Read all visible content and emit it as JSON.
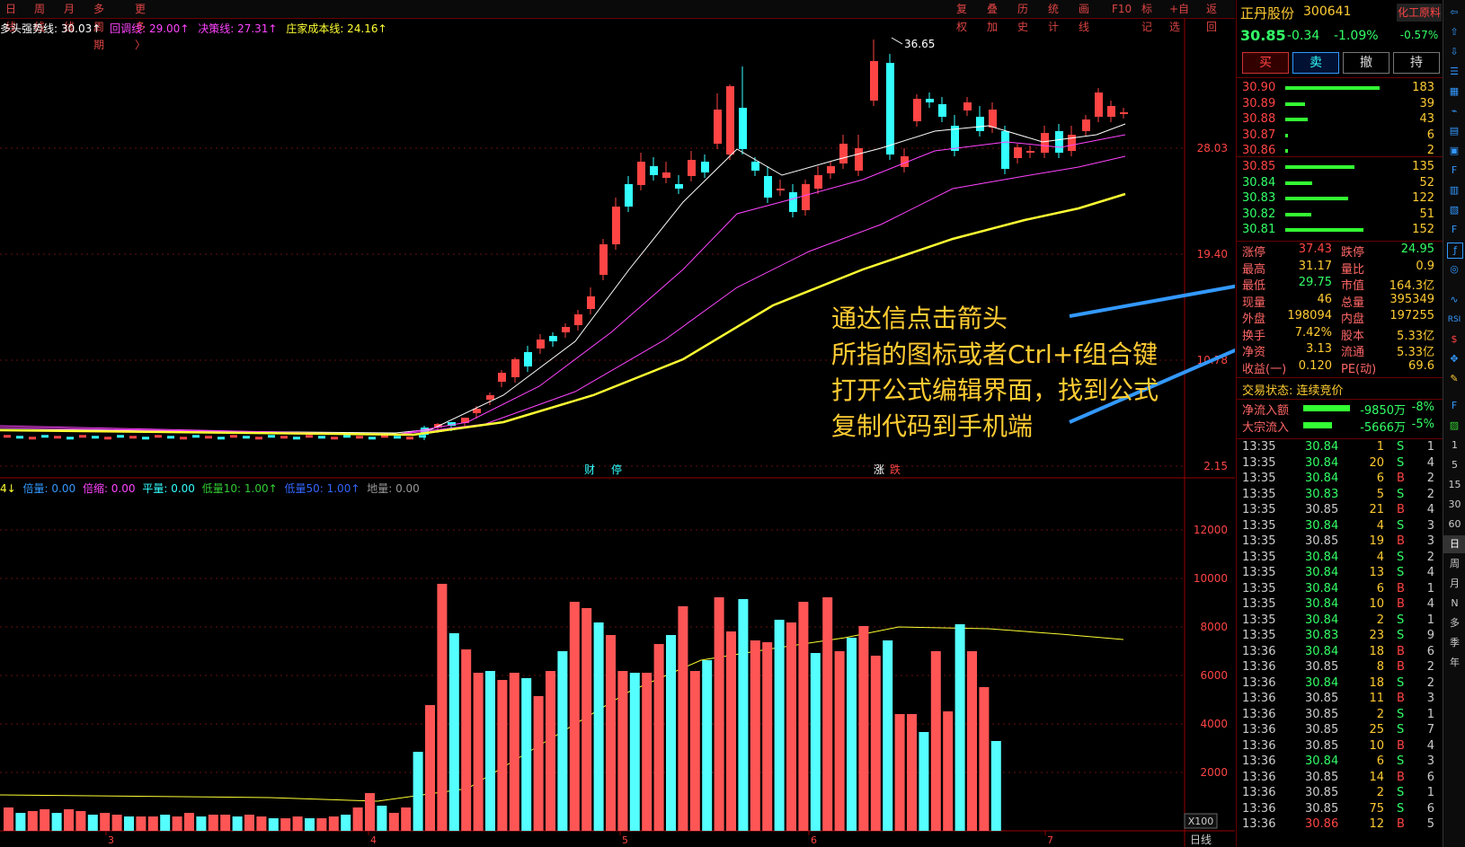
{
  "menu_left": [
    "日线",
    "周线",
    "月线",
    "多周期",
    "更多 〉"
  ],
  "menu_right": [
    "复权",
    "叠加",
    "历史",
    "统计",
    "画线",
    "F10",
    "标记",
    "+自选",
    "返回"
  ],
  "indicator_top": [
    {
      "label": "多头强势线: 30.03↑",
      "color": "#ffffff"
    },
    {
      "label": "回调线: 29.00↑",
      "color": "#ff44ff"
    },
    {
      "label": "决策线: 27.31↑",
      "color": "#ff44ff"
    },
    {
      "label": "庄家成本线: 24.16↑",
      "color": "#ffff33"
    }
  ],
  "indicator_vol": [
    {
      "label": "4↓",
      "color": "#ffff33"
    },
    {
      "label": "倍量: 0.00",
      "color": "#3399ff"
    },
    {
      "label": "倍缩: 0.00",
      "color": "#ff44ff"
    },
    {
      "label": "平量: 0.00",
      "color": "#33ffff"
    },
    {
      "label": "低量10: 1.00↑",
      "color": "#33cc33"
    },
    {
      "label": "低量50: 1.00↑",
      "color": "#3366ff"
    },
    {
      "label": "地量: 0.00",
      "color": "#999999"
    }
  ],
  "price_axis": [
    "28.03",
    "19.40",
    "10.78",
    "2.15"
  ],
  "vol_axis": [
    "12000",
    "10000",
    "8000",
    "6000",
    "4000",
    "2000"
  ],
  "vol_unit": "X100",
  "peak_label": "36.65",
  "date_axis": [
    "3",
    "4",
    "5",
    "6",
    "7"
  ],
  "date_axis_right": "日线",
  "event_labels": [
    "财",
    "停",
    "涨",
    "跌"
  ],
  "annotation": [
    "通达信点击箭头",
    "所指的图标或者Ctrl+f组合键",
    "打开公式编辑界面，找到公式",
    "复制代码到手机端"
  ],
  "stock": {
    "name": "正丹股份",
    "code": "300641",
    "industry": "化工原料",
    "price": "30.85",
    "change": "-0.34",
    "pct": "-1.09%",
    "industry_pct": "-0.57%"
  },
  "trade_buttons": [
    "买",
    "卖",
    "撤",
    "持"
  ],
  "asks": [
    [
      "30.90",
      "183"
    ],
    [
      "30.89",
      "39"
    ],
    [
      "30.88",
      "43"
    ],
    [
      "30.87",
      "6"
    ],
    [
      "30.86",
      "2"
    ]
  ],
  "bids": [
    [
      "30.85",
      "135"
    ],
    [
      "30.84",
      "52"
    ],
    [
      "30.83",
      "122"
    ],
    [
      "30.82",
      "51"
    ],
    [
      "30.81",
      "152"
    ]
  ],
  "stats": [
    [
      "涨停",
      "37.43",
      "跌停",
      "24.95"
    ],
    [
      "最高",
      "31.17",
      "量比",
      "0.9"
    ],
    [
      "最低",
      "29.75",
      "市值",
      "164.3亿"
    ],
    [
      "现量",
      "46",
      "总量",
      "395349"
    ],
    [
      "外盘",
      "198094",
      "内盘",
      "197255"
    ],
    [
      "换手",
      "7.42%",
      "股本",
      "5.33亿"
    ],
    [
      "净资",
      "3.13",
      "流通",
      "5.33亿"
    ],
    [
      "收益(一)",
      "0.120",
      "PE(动)",
      "69.6"
    ]
  ],
  "trade_status": "交易状态: 连续竞价",
  "flows": [
    [
      "净流入额",
      "-9850万",
      "-8%"
    ],
    [
      "大宗流入",
      "-5666万",
      "-5%"
    ]
  ],
  "ticks": [
    [
      "13:35",
      "30.84",
      "1",
      "S",
      "1"
    ],
    [
      "13:35",
      "30.84",
      "20",
      "S",
      "4"
    ],
    [
      "13:35",
      "30.84",
      "6",
      "B",
      "2"
    ],
    [
      "13:35",
      "30.83",
      "5",
      "S",
      "2"
    ],
    [
      "13:35",
      "30.85",
      "21",
      "B",
      "4"
    ],
    [
      "13:35",
      "30.84",
      "4",
      "S",
      "3"
    ],
    [
      "13:35",
      "30.85",
      "19",
      "B",
      "3"
    ],
    [
      "13:35",
      "30.84",
      "4",
      "S",
      "2"
    ],
    [
      "13:35",
      "30.84",
      "13",
      "S",
      "4"
    ],
    [
      "13:35",
      "30.84",
      "6",
      "B",
      "1"
    ],
    [
      "13:35",
      "30.84",
      "10",
      "B",
      "4"
    ],
    [
      "13:35",
      "30.84",
      "2",
      "S",
      "1"
    ],
    [
      "13:35",
      "30.83",
      "23",
      "S",
      "9"
    ],
    [
      "13:36",
      "30.84",
      "18",
      "B",
      "6"
    ],
    [
      "13:36",
      "30.85",
      "8",
      "B",
      "2"
    ],
    [
      "13:36",
      "30.84",
      "18",
      "S",
      "2"
    ],
    [
      "13:36",
      "30.85",
      "11",
      "B",
      "3"
    ],
    [
      "13:36",
      "30.85",
      "2",
      "S",
      "1"
    ],
    [
      "13:36",
      "30.85",
      "25",
      "S",
      "7"
    ],
    [
      "13:36",
      "30.85",
      "10",
      "B",
      "4"
    ],
    [
      "13:36",
      "30.84",
      "6",
      "S",
      "3"
    ],
    [
      "13:36",
      "30.85",
      "14",
      "B",
      "6"
    ],
    [
      "13:36",
      "30.85",
      "2",
      "S",
      "1"
    ],
    [
      "13:36",
      "30.85",
      "75",
      "S",
      "6"
    ],
    [
      "13:36",
      "30.86",
      "12",
      "B",
      "5"
    ]
  ],
  "period_buttons": [
    "1",
    "5",
    "15",
    "30",
    "60",
    "日",
    "周",
    "月",
    "N",
    "多",
    "季",
    "年"
  ],
  "colors": {
    "up": "#ff4444",
    "down": "#33ffff",
    "accent": "#ffcc33"
  }
}
